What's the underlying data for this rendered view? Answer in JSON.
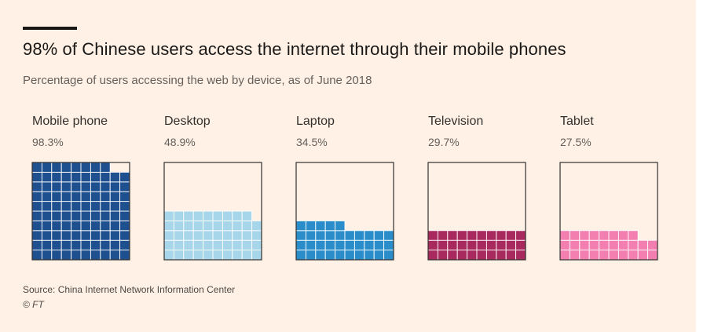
{
  "header": {
    "title": "98% of Chinese users access the internet through their mobile phones",
    "subtitle": "Percentage of users accessing the web by device, as of June 2018"
  },
  "chart_data": {
    "type": "waffle",
    "unit": "%",
    "grid": "10x10 squares per panel, each square = 1%",
    "categories": [
      "Mobile phone",
      "Desktop",
      "Laptop",
      "Television",
      "Tablet"
    ],
    "values": [
      98.3,
      48.9,
      34.5,
      29.7,
      27.5
    ],
    "value_labels": [
      "98.3%",
      "48.9%",
      "34.5%",
      "29.7%",
      "27.5%"
    ],
    "colors": [
      "#1e4f8f",
      "#a7d6ea",
      "#2a8dc9",
      "#a8295d",
      "#f27fb0"
    ]
  },
  "footer": {
    "source": "Source: China Internet Network Information Center",
    "credit": "© FT"
  },
  "style": {
    "background": "#fff1e5",
    "border": "#33302e",
    "cell_stroke": "#ffffff"
  }
}
